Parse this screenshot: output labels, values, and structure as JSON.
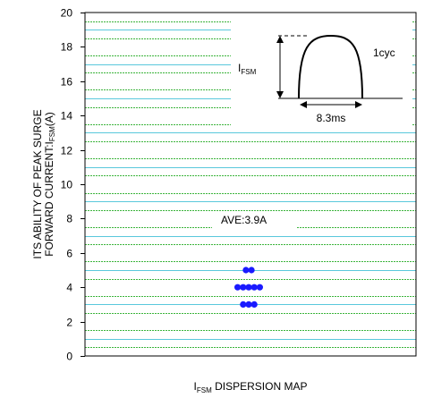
{
  "chart_data": {
    "type": "scatter",
    "title": "",
    "xlabel": "I_FSM DISPERSION MAP",
    "xlabel_parts": {
      "main": "I",
      "sub": "FSM",
      "rest": " DISPERSION MAP"
    },
    "ylabel_line1": "ITS ABILITY OF PEAK SURGE",
    "ylabel_line2_parts": {
      "main": "FORWARD CURRENT:I",
      "sub": "FSM",
      "rest": "(A)"
    },
    "ylim": [
      0,
      20
    ],
    "yticks": [
      "0",
      "2",
      "4",
      "6",
      "8",
      "10",
      "12",
      "14",
      "16",
      "18",
      "20"
    ],
    "grid": true,
    "points": [
      {
        "y": 5,
        "count": 2
      },
      {
        "y": 4,
        "count": 5
      },
      {
        "y": 3,
        "count": 3
      }
    ],
    "annotation": "AVE:3.9A",
    "inset": {
      "amplitude_label_parts": {
        "main": "I",
        "sub": "FSM"
      },
      "duration_label": "8.3ms",
      "cycle_label": "1cyc"
    },
    "colors": {
      "point": "#1a1aff",
      "minor_grid": "#3cb43c",
      "major_grid": "#5ac8dc",
      "axis": "#000000"
    }
  }
}
